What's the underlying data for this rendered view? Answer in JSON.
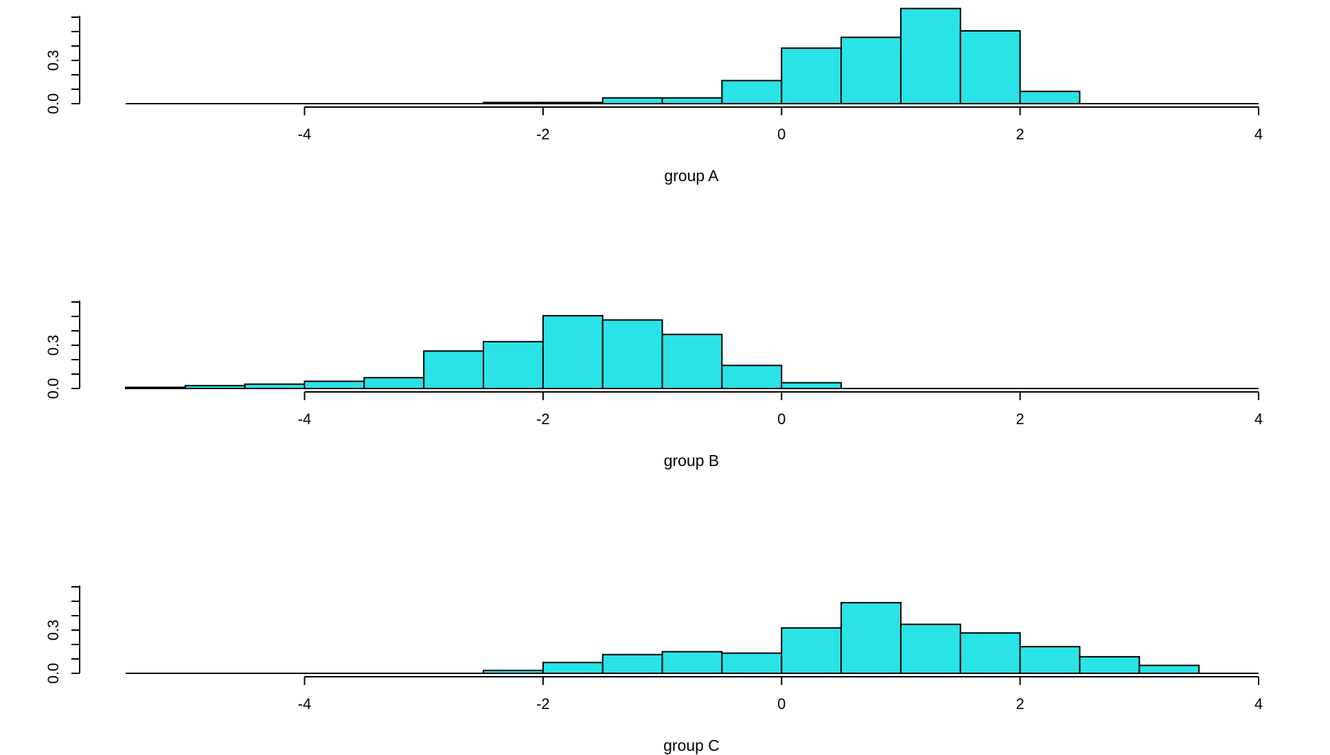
{
  "chart_data": [
    {
      "type": "bar",
      "xlabel": "group A",
      "ylabel": "",
      "xlim": [
        -5.5,
        4
      ],
      "ylim": [
        0,
        0.6
      ],
      "x_ticks": [
        -4,
        -2,
        0,
        2,
        4
      ],
      "y_ticks": [
        0,
        0.1,
        0.2,
        0.3,
        0.4,
        0.5,
        0.6
      ],
      "y_tick_labels": [
        {
          "value": 0.0,
          "label": "0.0"
        },
        {
          "value": 0.3,
          "label": "0.3"
        }
      ],
      "bin_edges": [
        -5.5,
        -5.0,
        -4.5,
        -4.0,
        -3.5,
        -3.0,
        -2.5,
        -2.0,
        -1.5,
        -1.0,
        -0.5,
        0.0,
        0.5,
        1.0,
        1.5,
        2.0,
        2.5,
        3.0,
        3.5,
        4.0
      ],
      "values": [
        0,
        0,
        0,
        0,
        0,
        0,
        0.008,
        0.008,
        0.04,
        0.04,
        0.16,
        0.385,
        0.46,
        0.66,
        0.505,
        0.085,
        0,
        0,
        0
      ],
      "color": "#2ae3e6"
    },
    {
      "type": "bar",
      "xlabel": "group B",
      "ylabel": "",
      "xlim": [
        -5.5,
        4
      ],
      "ylim": [
        0,
        0.6
      ],
      "x_ticks": [
        -4,
        -2,
        0,
        2,
        4
      ],
      "y_ticks": [
        0,
        0.1,
        0.2,
        0.3,
        0.4,
        0.5,
        0.6
      ],
      "y_tick_labels": [
        {
          "value": 0.0,
          "label": "0.0"
        },
        {
          "value": 0.3,
          "label": "0.3"
        }
      ],
      "bin_edges": [
        -5.5,
        -5.0,
        -4.5,
        -4.0,
        -3.5,
        -3.0,
        -2.5,
        -2.0,
        -1.5,
        -1.0,
        -0.5,
        0.0,
        0.5,
        1.0,
        1.5,
        2.0,
        2.5,
        3.0,
        3.5,
        4.0
      ],
      "values": [
        0.008,
        0.02,
        0.03,
        0.05,
        0.075,
        0.26,
        0.325,
        0.505,
        0.475,
        0.375,
        0.16,
        0.04,
        0,
        0,
        0,
        0,
        0,
        0,
        0
      ],
      "color": "#2ae3e6"
    },
    {
      "type": "bar",
      "xlabel": "group C",
      "ylabel": "",
      "xlim": [
        -5.5,
        4
      ],
      "ylim": [
        0,
        0.6
      ],
      "x_ticks": [
        -4,
        -2,
        0,
        2,
        4
      ],
      "y_ticks": [
        0,
        0.1,
        0.2,
        0.3,
        0.4,
        0.5,
        0.6
      ],
      "y_tick_labels": [
        {
          "value": 0.0,
          "label": "0.0"
        },
        {
          "value": 0.3,
          "label": "0.3"
        }
      ],
      "bin_edges": [
        -5.5,
        -5.0,
        -4.5,
        -4.0,
        -3.5,
        -3.0,
        -2.5,
        -2.0,
        -1.5,
        -1.0,
        -0.5,
        0.0,
        0.5,
        1.0,
        1.5,
        2.0,
        2.5,
        3.0,
        3.5,
        4.0
      ],
      "values": [
        0,
        0,
        0,
        0,
        0,
        0,
        0.02,
        0.075,
        0.13,
        0.15,
        0.14,
        0.315,
        0.49,
        0.34,
        0.28,
        0.185,
        0.115,
        0.055,
        0
      ],
      "color": "#2ae3e6"
    }
  ]
}
